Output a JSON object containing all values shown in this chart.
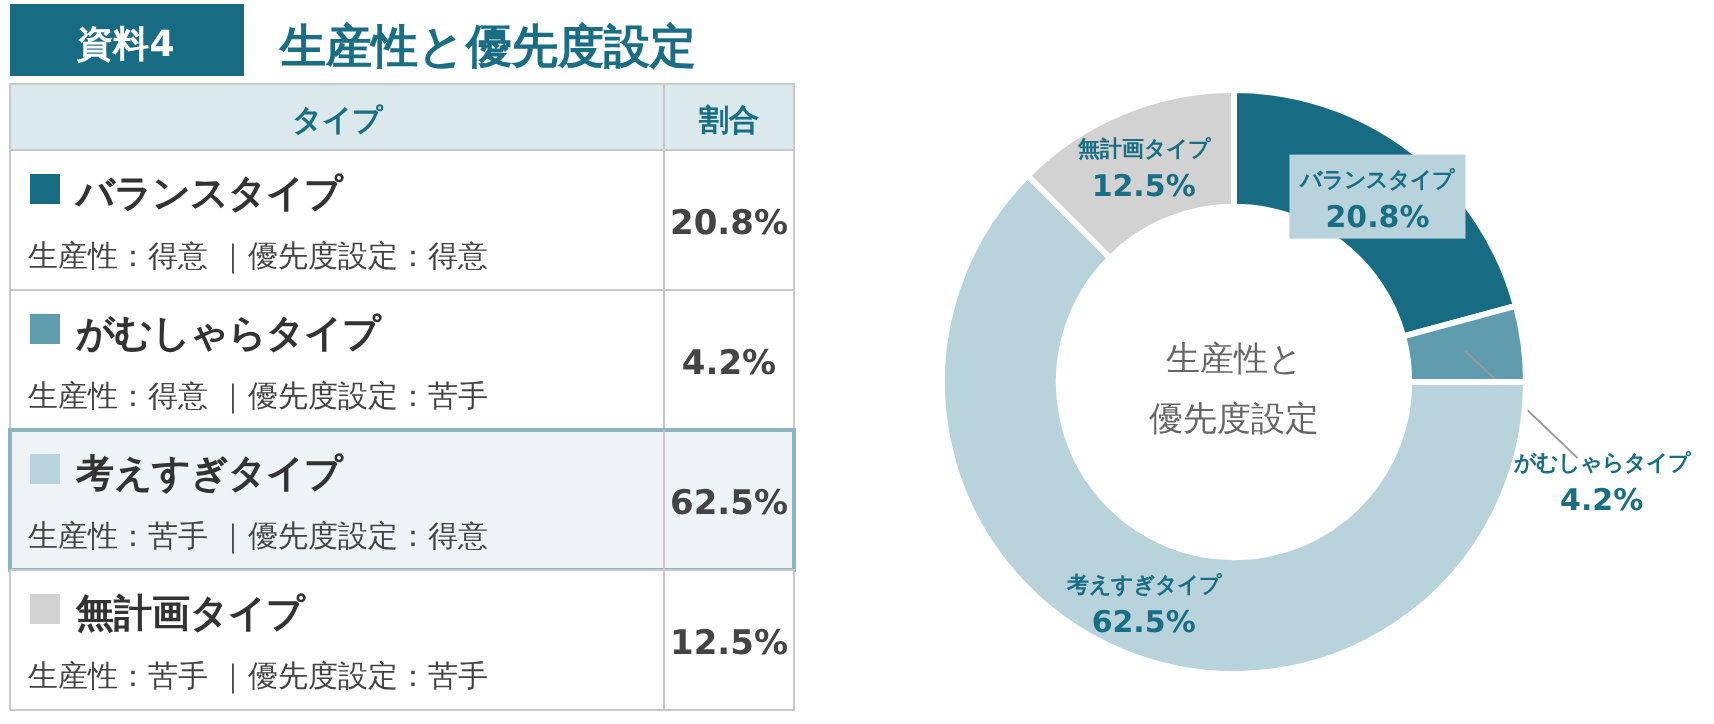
{
  "chart_data": {
    "type": "donut",
    "title": "生産性と優先度設定",
    "categories": [
      "バランスタイプ",
      "がむしゃらタイプ",
      "考えすぎタイプ",
      "無計画タイプ"
    ],
    "values": [
      20.8,
      4.2,
      62.5,
      12.5
    ],
    "colors": [
      "#176b82",
      "#5f9cad",
      "#b8d3dc",
      "#d2d2d2"
    ],
    "legend": "left",
    "value_labels": [
      "20.8%",
      "4.2%",
      "62.5%",
      "12.5%"
    ],
    "annotations": [
      "資料4",
      "タイプ",
      "割合",
      "生産性：得意 ｜優先度設定：得意",
      "生産性：得意 ｜優先度設定：苦手",
      "生産性：苦手 ｜優先度設定：得意",
      "生産性：苦手 ｜優先度設定：苦手",
      "生産性と",
      "優先度設定"
    ]
  }
}
